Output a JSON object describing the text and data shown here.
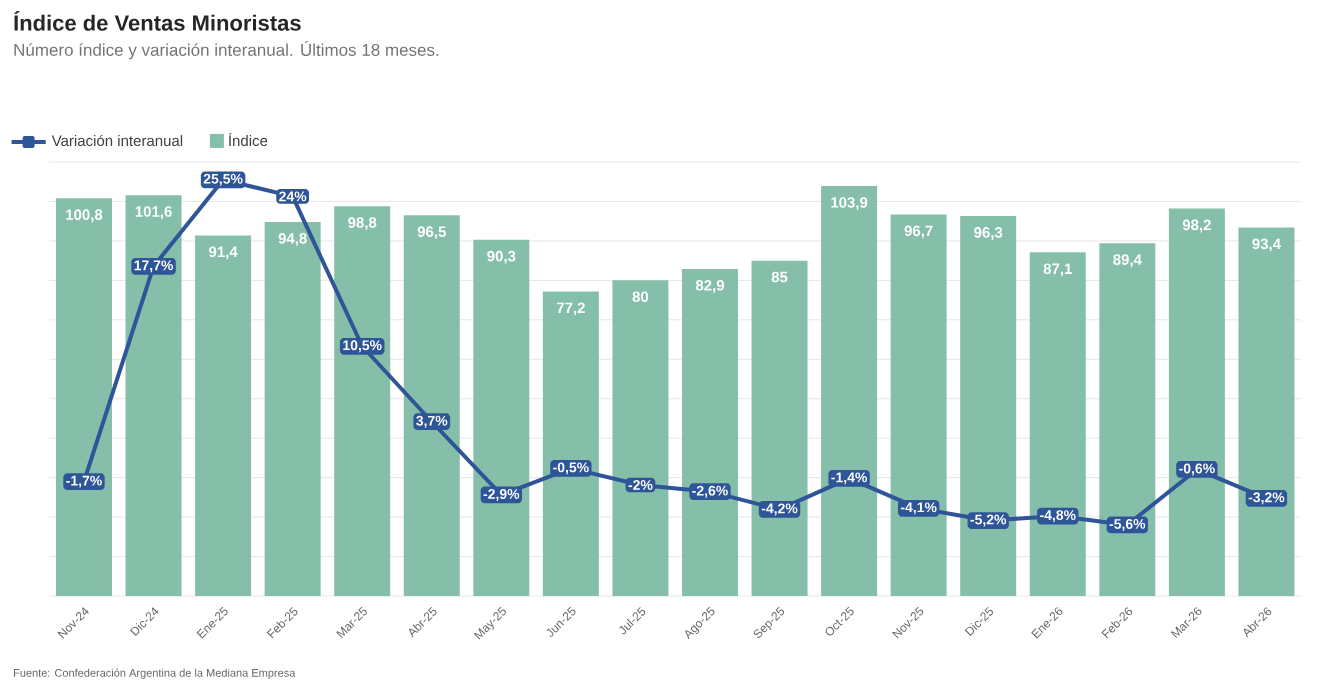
{
  "chart_data": {
    "type": "bar",
    "title": "Índice de Ventas Minoristas",
    "subtitle": "Número índice y variación interanual. Últimos 18 meses.",
    "categories": [
      "Nov-24",
      "Dic-24",
      "Ene-25",
      "Feb-25",
      "Mar-25",
      "Abr-25",
      "May-25",
      "Jun-25",
      "Jul-25",
      "Ago-25",
      "Sep-25",
      "Oct-25",
      "Nov-25",
      "Dic-25",
      "Ene-26",
      "Feb-26",
      "Mar-26",
      "Abr-26"
    ],
    "series": [
      {
        "name": "Variación interanual",
        "type": "line",
        "axis": "y2",
        "color": "#2e5597",
        "marker": "square",
        "line_style": "solid",
        "values": [
          -1.7,
          17.7,
          25.5,
          24,
          10.5,
          3.7,
          -2.9,
          -0.5,
          -2,
          -2.6,
          -4.2,
          -1.4,
          -4.1,
          -5.2,
          -4.8,
          -5.6,
          -0.6,
          -3.2
        ],
        "value_labels": [
          "-1,7%",
          "17,7%",
          "25,5%",
          "24%",
          "10,5%",
          "3,7%",
          "-2,9%",
          "-0,5%",
          "-2%",
          "-2,6%",
          "-4,2%",
          "-1,4%",
          "-4,1%",
          "-5,2%",
          "-4,8%",
          "-5,6%",
          "-0,6%",
          "-3,2%"
        ]
      },
      {
        "name": "Índice",
        "color": "#86bfa9",
        "values": [
          100.8,
          101.6,
          91.4,
          94.8,
          98.8,
          96.5,
          90.3,
          77.2,
          80,
          82.9,
          85,
          103.9,
          96.7,
          96.3,
          87.1,
          89.4,
          98.2,
          93.4
        ],
        "value_labels": [
          "100,8",
          "101,6",
          "91,4",
          "94,8",
          "98,8",
          "96,5",
          "90,3",
          "77,2",
          "80",
          "82,9",
          "85",
          "103,9",
          "96,7",
          "96,3",
          "87,1",
          "89,4",
          "98,2",
          "93,4"
        ]
      }
    ],
    "ylim": [
      0,
      110
    ],
    "yticks": [
      {
        "value": 0,
        "label": null
      },
      {
        "value": 10,
        "label": null
      },
      {
        "value": 20,
        "label": null
      },
      {
        "value": 30,
        "label": null
      },
      {
        "value": 40,
        "label": null
      },
      {
        "value": 50,
        "label": null
      },
      {
        "value": 60,
        "label": null
      },
      {
        "value": 70,
        "label": null
      },
      {
        "value": 80,
        "label": null
      },
      {
        "value": 90,
        "label": null
      },
      {
        "value": 100,
        "label": null
      },
      {
        "value": 110,
        "label": null
      }
    ],
    "y2lim": [
      -12,
      27.1
    ],
    "grid": "y",
    "tick_labels": "x",
    "legend": "top left",
    "annotations": [
      "Fuente: Confederación Argentina de la Mediana Empresa"
    ]
  }
}
